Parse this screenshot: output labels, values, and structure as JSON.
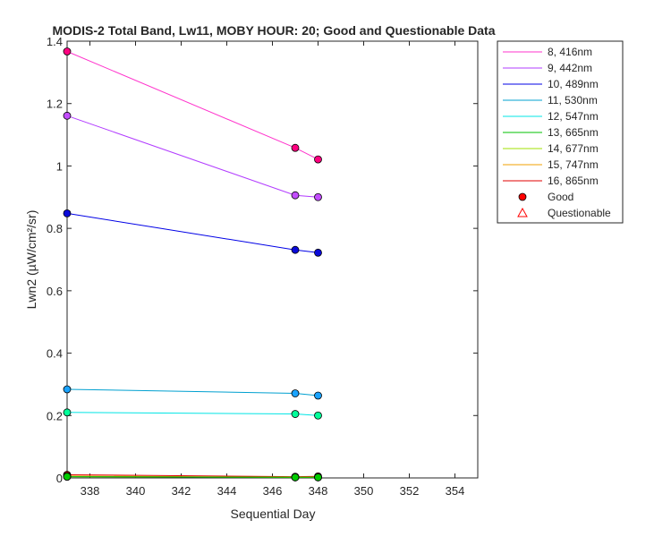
{
  "chart_data": {
    "type": "line",
    "title": "MODIS-2 Total Band, Lw11, MOBY HOUR: 20;  Good and Questionable Data",
    "xlabel": "Sequential Day",
    "ylabel": "Lwn2 (µW/cm²/sr)",
    "xlim": [
      337,
      355
    ],
    "ylim": [
      0,
      1.4
    ],
    "xticks": [
      "338",
      "340",
      "342",
      "344",
      "346",
      "348",
      "350",
      "352",
      "354"
    ],
    "yticks": [
      "0",
      "0.2",
      "0.4",
      "0.6",
      "0.8",
      "1",
      "1.2",
      "1.4"
    ],
    "grid": false,
    "legend_position": "outside-top-right",
    "x": [
      337,
      347,
      348
    ],
    "series": [
      {
        "name": "8, 416nm",
        "line_color": "#ff33cc",
        "marker_color": "#ff0080",
        "values": [
          1.367,
          1.058,
          1.021
        ]
      },
      {
        "name": "9, 442nm",
        "line_color": "#b23cff",
        "marker_color": "#c34dff",
        "values": [
          1.161,
          0.906,
          0.9
        ]
      },
      {
        "name": "10, 489nm",
        "line_color": "#0000e6",
        "marker_color": "#0a0ad9",
        "values": [
          0.848,
          0.731,
          0.722
        ]
      },
      {
        "name": "11, 530nm",
        "line_color": "#00a0d0",
        "marker_color": "#1aa3ff",
        "values": [
          0.284,
          0.271,
          0.264
        ]
      },
      {
        "name": "12, 547nm",
        "line_color": "#00e5e5",
        "marker_color": "#00ff99",
        "values": [
          0.21,
          0.205,
          0.2
        ]
      },
      {
        "name": "13, 665nm",
        "line_color": "#00c000",
        "marker_color": "#00cc00",
        "values": [
          0.004,
          0.002,
          0.002
        ]
      },
      {
        "name": "14, 677nm",
        "line_color": "#a0e000",
        "marker_color": "#b3ff00",
        "values": [
          0.004,
          0.002,
          0.002
        ]
      },
      {
        "name": "15, 747nm",
        "line_color": "#f0a000",
        "marker_color": "#f0a000",
        "values": [
          0.006,
          0.002,
          0.002
        ]
      },
      {
        "name": "16, 865nm",
        "line_color": "#e00000",
        "marker_color": "#e60000",
        "values": [
          0.01,
          0.004,
          0.005
        ]
      }
    ],
    "legend_extra": [
      {
        "name": "Good",
        "symbol": "circle",
        "color": "#ff0000"
      },
      {
        "name": "Questionable",
        "symbol": "triangle",
        "color": "#ff0000"
      }
    ]
  }
}
